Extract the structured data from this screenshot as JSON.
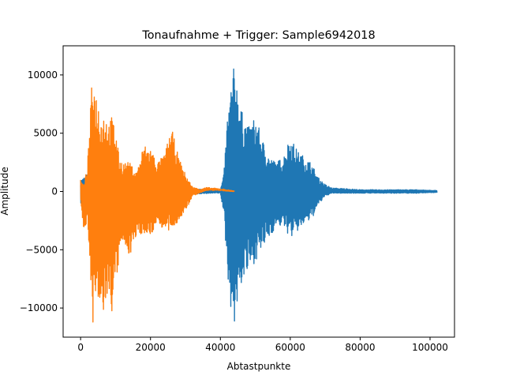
{
  "chart_data": {
    "type": "line",
    "title": "Tonaufnahme + Trigger: Sample6942018",
    "xlabel": "Abtastpunkte",
    "ylabel": "Amplitude",
    "xlim": [
      -5000,
      107000
    ],
    "ylim": [
      -12500,
      12500
    ],
    "xticks": [
      0,
      20000,
      40000,
      60000,
      80000,
      100000
    ],
    "xtick_labels": [
      "0",
      "20000",
      "40000",
      "60000",
      "80000",
      "100000"
    ],
    "yticks": [
      -10000,
      -5000,
      0,
      5000,
      10000
    ],
    "ytick_labels": [
      "−10000",
      "−5000",
      "0",
      "5000",
      "10000"
    ],
    "grid": false,
    "series": [
      {
        "color": "#1f77b4",
        "envelope": {
          "x": [
            0,
            2000,
            4000,
            8000,
            12000,
            16000,
            20000,
            26000,
            30000,
            34000,
            38000,
            40000,
            41000,
            42000,
            43000,
            44000,
            46000,
            48000,
            50000,
            52000,
            54000,
            56000,
            58000,
            60000,
            62000,
            64000,
            66000,
            68000,
            70000,
            72000,
            76000,
            80000,
            84000,
            88000,
            92000,
            96000,
            100000,
            102000
          ],
          "upper": [
            1000,
            1500,
            1800,
            1200,
            800,
            700,
            600,
            500,
            300,
            200,
            150,
            150,
            1500,
            6500,
            9000,
            11000,
            7000,
            5500,
            6500,
            4500,
            3000,
            2500,
            3000,
            4800,
            3500,
            3000,
            2500,
            1200,
            600,
            300,
            250,
            150,
            150,
            150,
            150,
            150,
            100,
            100
          ],
          "lower": [
            -1000,
            -1500,
            -1800,
            -1200,
            -800,
            -700,
            -600,
            -500,
            -300,
            -200,
            -150,
            -150,
            -2000,
            -7000,
            -10000,
            -11500,
            -8000,
            -7000,
            -6000,
            -5000,
            -4000,
            -3000,
            -3000,
            -4000,
            -3500,
            -2800,
            -2500,
            -1200,
            -400,
            -150,
            -150,
            -150,
            -150,
            -150,
            -150,
            -150,
            -100,
            -100
          ]
        }
      },
      {
        "color": "#ff7f0e",
        "envelope": {
          "x": [
            0,
            1000,
            2000,
            3000,
            3500,
            4000,
            5000,
            6000,
            7000,
            8000,
            9000,
            10000,
            11000,
            12000,
            14000,
            16000,
            18000,
            20000,
            22000,
            24000,
            26000,
            28000,
            30000,
            32000,
            34000,
            36000,
            38000,
            40000,
            42000,
            44000
          ],
          "upper": [
            1000,
            500,
            2500,
            8000,
            11200,
            9000,
            8000,
            6500,
            7000,
            6000,
            6500,
            5500,
            3000,
            2500,
            2500,
            1600,
            4000,
            3800,
            2500,
            3200,
            5500,
            3000,
            1500,
            400,
            200,
            350,
            300,
            250,
            150,
            50
          ],
          "lower": [
            -1000,
            -3500,
            -2500,
            -8000,
            -11500,
            -9000,
            -10500,
            -11000,
            -10000,
            -9000,
            -10500,
            -8500,
            -6000,
            -4500,
            -5500,
            -4000,
            -3500,
            -4000,
            -2500,
            -3500,
            -3500,
            -2500,
            -1800,
            -400,
            -150,
            150,
            150,
            150,
            50,
            0
          ]
        }
      }
    ]
  }
}
